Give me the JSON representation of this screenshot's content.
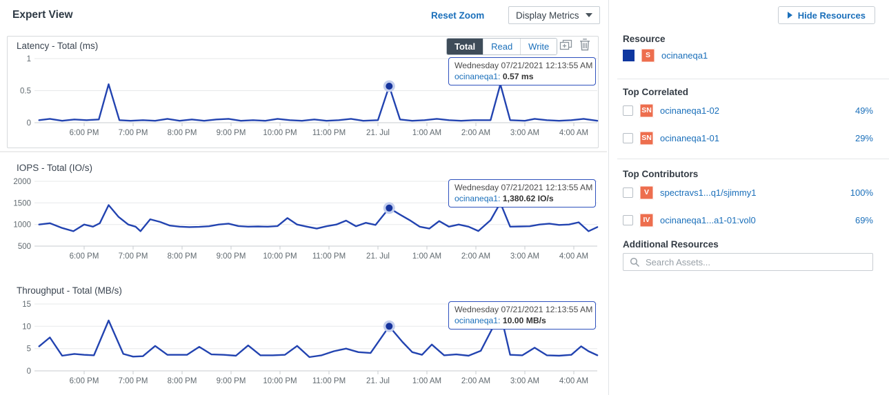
{
  "header": {
    "title": "Expert View",
    "reset_zoom_label": "Reset Zoom",
    "display_metrics_label": "Display Metrics"
  },
  "colors": {
    "accent_blue": "#1a6fba",
    "series_blue": "#2243b0",
    "marker_dot": "#16349d",
    "marker_halo": "#c4cfee",
    "badge_orange": "#ed6e4e",
    "segment_selected_bg": "#3e4c59"
  },
  "icons": {
    "display_metrics_caret": "caret-down-icon",
    "chart_duplicate": "copy-plus-icon",
    "chart_delete": "trash-icon",
    "hide_resources_arrow": "triangle-right-icon",
    "search": "magnifier-icon"
  },
  "chart_data": [
    {
      "type": "line",
      "title": "Latency - Total (ms)",
      "ylabel": "ms",
      "ylim": [
        0,
        1
      ],
      "yticks": [
        0,
        0.5,
        1
      ],
      "x_labels": [
        "6:00 PM",
        "7:00 PM",
        "8:00 PM",
        "9:00 PM",
        "10:00 PM",
        "11:00 PM",
        "21. Jul",
        "1:00 AM",
        "2:00 AM",
        "3:00 AM",
        "4:00 AM"
      ],
      "controls": [
        "Total",
        "Read",
        "Write"
      ],
      "selected_control": "Total",
      "series": [
        {
          "name": "ocinaneqa1",
          "color": "#2243b0",
          "points": [
            [
              0.08,
              0.04
            ],
            [
              0.3,
              0.06
            ],
            [
              0.55,
              0.03
            ],
            [
              0.8,
              0.05
            ],
            [
              1.05,
              0.04
            ],
            [
              1.3,
              0.05
            ],
            [
              1.5,
              0.6
            ],
            [
              1.72,
              0.04
            ],
            [
              1.95,
              0.03
            ],
            [
              2.2,
              0.04
            ],
            [
              2.45,
              0.03
            ],
            [
              2.7,
              0.06
            ],
            [
              2.95,
              0.03
            ],
            [
              3.2,
              0.05
            ],
            [
              3.45,
              0.03
            ],
            [
              3.7,
              0.05
            ],
            [
              3.95,
              0.06
            ],
            [
              4.2,
              0.03
            ],
            [
              4.45,
              0.04
            ],
            [
              4.7,
              0.03
            ],
            [
              4.95,
              0.06
            ],
            [
              5.2,
              0.04
            ],
            [
              5.45,
              0.03
            ],
            [
              5.7,
              0.05
            ],
            [
              5.95,
              0.03
            ],
            [
              6.2,
              0.04
            ],
            [
              6.45,
              0.06
            ],
            [
              6.7,
              0.03
            ],
            [
              7.0,
              0.04
            ],
            [
              7.23,
              0.57
            ],
            [
              7.45,
              0.05
            ],
            [
              7.7,
              0.03
            ],
            [
              7.95,
              0.04
            ],
            [
              8.2,
              0.06
            ],
            [
              8.45,
              0.04
            ],
            [
              8.7,
              0.03
            ],
            [
              8.95,
              0.04
            ],
            [
              9.3,
              0.04
            ],
            [
              9.5,
              0.6
            ],
            [
              9.7,
              0.04
            ],
            [
              10.0,
              0.03
            ],
            [
              10.2,
              0.06
            ],
            [
              10.45,
              0.04
            ],
            [
              10.7,
              0.03
            ],
            [
              10.95,
              0.04
            ],
            [
              11.2,
              0.06
            ],
            [
              11.48,
              0.03
            ]
          ]
        }
      ],
      "marker": {
        "t": 7.23,
        "v": 0.57
      },
      "tooltip": {
        "date": "Wednesday 07/21/2021 12:13:55 AM",
        "name": "ocinaneqa1:",
        "value": "0.57 ms"
      }
    },
    {
      "type": "line",
      "title": "IOPS - Total (IO/s)",
      "ylabel": "IO/s",
      "ylim": [
        500,
        2000
      ],
      "yticks": [
        500,
        1000,
        1500,
        2000
      ],
      "x_labels": [
        "6:00 PM",
        "7:00 PM",
        "8:00 PM",
        "9:00 PM",
        "10:00 PM",
        "11:00 PM",
        "21. Jul",
        "1:00 AM",
        "2:00 AM",
        "3:00 AM",
        "4:00 AM"
      ],
      "series": [
        {
          "name": "ocinaneqa1",
          "color": "#2243b0",
          "points": [
            [
              0.08,
              1000
            ],
            [
              0.3,
              1030
            ],
            [
              0.55,
              920
            ],
            [
              0.78,
              845
            ],
            [
              1.0,
              1000
            ],
            [
              1.18,
              950
            ],
            [
              1.32,
              1030
            ],
            [
              1.5,
              1450
            ],
            [
              1.7,
              1180
            ],
            [
              1.9,
              1000
            ],
            [
              2.05,
              950
            ],
            [
              2.15,
              845
            ],
            [
              2.35,
              1120
            ],
            [
              2.55,
              1060
            ],
            [
              2.75,
              975
            ],
            [
              2.95,
              950
            ],
            [
              3.15,
              940
            ],
            [
              3.35,
              945
            ],
            [
              3.55,
              960
            ],
            [
              3.75,
              1000
            ],
            [
              3.95,
              1020
            ],
            [
              4.15,
              965
            ],
            [
              4.35,
              950
            ],
            [
              4.55,
              955
            ],
            [
              4.75,
              950
            ],
            [
              4.95,
              965
            ],
            [
              5.15,
              1150
            ],
            [
              5.35,
              1000
            ],
            [
              5.55,
              950
            ],
            [
              5.75,
              905
            ],
            [
              5.95,
              960
            ],
            [
              6.15,
              1000
            ],
            [
              6.35,
              1090
            ],
            [
              6.55,
              960
            ],
            [
              6.75,
              1040
            ],
            [
              6.95,
              990
            ],
            [
              7.23,
              1380.62
            ],
            [
              7.45,
              1230
            ],
            [
              7.65,
              1100
            ],
            [
              7.85,
              950
            ],
            [
              8.05,
              905
            ],
            [
              8.25,
              1080
            ],
            [
              8.45,
              950
            ],
            [
              8.65,
              1000
            ],
            [
              8.85,
              950
            ],
            [
              9.05,
              850
            ],
            [
              9.3,
              1100
            ],
            [
              9.5,
              1500
            ],
            [
              9.7,
              950
            ],
            [
              9.9,
              955
            ],
            [
              10.1,
              960
            ],
            [
              10.3,
              1000
            ],
            [
              10.5,
              1020
            ],
            [
              10.7,
              990
            ],
            [
              10.9,
              1000
            ],
            [
              11.1,
              1050
            ],
            [
              11.3,
              845
            ],
            [
              11.48,
              940
            ]
          ]
        }
      ],
      "marker": {
        "t": 7.23,
        "v": 1380.62
      },
      "tooltip": {
        "date": "Wednesday 07/21/2021 12:13:55 AM",
        "name": "ocinaneqa1:",
        "value": "1,380.62 IO/s"
      }
    },
    {
      "type": "line",
      "title": "Throughput - Total (MB/s)",
      "ylabel": "MB/s",
      "ylim": [
        0,
        15
      ],
      "yticks": [
        0,
        5,
        10,
        15
      ],
      "x_labels": [
        "6:00 PM",
        "7:00 PM",
        "8:00 PM",
        "9:00 PM",
        "10:00 PM",
        "11:00 PM",
        "21. Jul",
        "1:00 AM",
        "2:00 AM",
        "3:00 AM",
        "4:00 AM"
      ],
      "series": [
        {
          "name": "ocinaneqa1",
          "color": "#2243b0",
          "points": [
            [
              0.08,
              5.5
            ],
            [
              0.3,
              7.5
            ],
            [
              0.55,
              3.4
            ],
            [
              0.8,
              3.8
            ],
            [
              1.0,
              3.6
            ],
            [
              1.2,
              3.5
            ],
            [
              1.5,
              11.3
            ],
            [
              1.8,
              3.8
            ],
            [
              2.0,
              3.2
            ],
            [
              2.2,
              3.3
            ],
            [
              2.45,
              5.6
            ],
            [
              2.7,
              3.6
            ],
            [
              2.9,
              3.6
            ],
            [
              3.1,
              3.6
            ],
            [
              3.35,
              5.4
            ],
            [
              3.6,
              3.7
            ],
            [
              3.85,
              3.6
            ],
            [
              4.1,
              3.4
            ],
            [
              4.35,
              5.7
            ],
            [
              4.6,
              3.5
            ],
            [
              4.85,
              3.5
            ],
            [
              5.1,
              3.6
            ],
            [
              5.35,
              5.6
            ],
            [
              5.6,
              3.1
            ],
            [
              5.85,
              3.5
            ],
            [
              6.1,
              4.4
            ],
            [
              6.35,
              5.0
            ],
            [
              6.6,
              4.2
            ],
            [
              6.85,
              4.0
            ],
            [
              7.23,
              10.0
            ],
            [
              7.5,
              6.5
            ],
            [
              7.7,
              4.2
            ],
            [
              7.9,
              3.6
            ],
            [
              8.1,
              5.9
            ],
            [
              8.35,
              3.5
            ],
            [
              8.6,
              3.7
            ],
            [
              8.85,
              3.4
            ],
            [
              9.1,
              4.5
            ],
            [
              9.5,
              13.0
            ],
            [
              9.7,
              3.6
            ],
            [
              9.95,
              3.5
            ],
            [
              10.2,
              5.2
            ],
            [
              10.45,
              3.5
            ],
            [
              10.7,
              3.4
            ],
            [
              10.95,
              3.6
            ],
            [
              11.15,
              5.5
            ],
            [
              11.3,
              4.4
            ],
            [
              11.48,
              3.5
            ]
          ]
        }
      ],
      "marker": {
        "t": 7.23,
        "v": 10.0
      },
      "tooltip": {
        "date": "Wednesday 07/21/2021 12:13:55 AM",
        "name": "ocinaneqa1:",
        "value": "10.00 MB/s"
      }
    }
  ],
  "sidebar": {
    "hide_resources_label": "Hide Resources",
    "resource_heading": "Resource",
    "resource": {
      "badge": "S",
      "name": "ocinaneqa1"
    },
    "top_correlated_heading": "Top Correlated",
    "top_correlated": [
      {
        "badge": "SN",
        "name": "ocinaneqa1-02",
        "pct": "49%"
      },
      {
        "badge": "SN",
        "name": "ocinaneqa1-01",
        "pct": "29%"
      }
    ],
    "top_contributors_heading": "Top Contributors",
    "top_contributors": [
      {
        "badge": "V",
        "name": "spectravs1...q1/sjimmy1",
        "pct": "100%"
      },
      {
        "badge": "IV",
        "name": "ocinaneqa1...a1-01:vol0",
        "pct": "69%"
      }
    ],
    "additional_resources_heading": "Additional Resources",
    "search_placeholder": "Search Assets..."
  }
}
